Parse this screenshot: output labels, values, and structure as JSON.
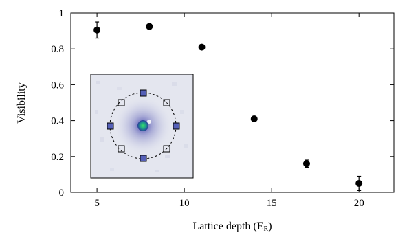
{
  "chart_data": {
    "type": "scatter",
    "xlabel": "Lattice depth (E",
    "xlabel_sub": "R",
    "xlabel_close": ")",
    "ylabel": "Visibility",
    "xlim": [
      3.5,
      22
    ],
    "ylim": [
      0,
      1
    ],
    "xticks": [
      "5",
      "10",
      "15",
      "20"
    ],
    "yticks": [
      "0",
      "0.2",
      "0.4",
      "0.6",
      "0.8",
      "1"
    ],
    "series": [
      {
        "points": [
          {
            "x": 5,
            "y": 0.905,
            "err": 0.045
          },
          {
            "x": 8,
            "y": 0.925,
            "err": 0
          },
          {
            "x": 11,
            "y": 0.81,
            "err": 0
          },
          {
            "x": 14,
            "y": 0.41,
            "err": 0
          },
          {
            "x": 17,
            "y": 0.16,
            "err": 0.02
          },
          {
            "x": 20,
            "y": 0.05,
            "err": 0.04
          }
        ]
      }
    ],
    "inset": {
      "type": "image",
      "description_icon": "absorption-image-icon",
      "marker_style": "squares-on-dashed-circle"
    },
    "grid": false,
    "legend": "none"
  }
}
